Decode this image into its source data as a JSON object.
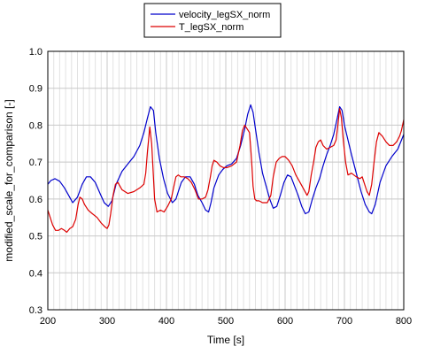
{
  "chart_data": {
    "type": "line",
    "xlabel": "Time [s]",
    "ylabel": "modified_scale_for_comparison [-]",
    "xlim": [
      200,
      800
    ],
    "ylim": [
      0.3,
      1.0
    ],
    "xticks": [
      "200",
      "300",
      "400",
      "500",
      "600",
      "700",
      "800"
    ],
    "yticks": [
      "0.3",
      "0.4",
      "0.5",
      "0.6",
      "0.7",
      "0.8",
      "0.9",
      "1.0"
    ],
    "grid": true,
    "legend_position": "top-center",
    "series": [
      {
        "name": "velocity_legSX_norm",
        "color": "#0000cc",
        "x": [
          200,
          205,
          212,
          220,
          228,
          235,
          242,
          250,
          258,
          265,
          272,
          280,
          288,
          295,
          302,
          308,
          315,
          325,
          335,
          345,
          355,
          362,
          368,
          373,
          378,
          382,
          388,
          395,
          402,
          410,
          416,
          420,
          425,
          432,
          440,
          447,
          453,
          460,
          466,
          471,
          475,
          480,
          488,
          495,
          502,
          510,
          518,
          525,
          532,
          537,
          542,
          546,
          550,
          556,
          562,
          568,
          574,
          580,
          586,
          592,
          598,
          604,
          610,
          616,
          622,
          628,
          634,
          640,
          646,
          652,
          658,
          664,
          670,
          676,
          682,
          688,
          692,
          696,
          700,
          706,
          712,
          720,
          728,
          735,
          742,
          746,
          752,
          760,
          770,
          780,
          790,
          800
        ],
        "y": [
          0.64,
          0.65,
          0.655,
          0.648,
          0.63,
          0.61,
          0.59,
          0.605,
          0.64,
          0.66,
          0.66,
          0.645,
          0.615,
          0.59,
          0.58,
          0.595,
          0.64,
          0.675,
          0.695,
          0.715,
          0.745,
          0.78,
          0.82,
          0.85,
          0.84,
          0.78,
          0.71,
          0.655,
          0.615,
          0.59,
          0.6,
          0.62,
          0.645,
          0.66,
          0.66,
          0.64,
          0.61,
          0.59,
          0.57,
          0.565,
          0.59,
          0.63,
          0.665,
          0.68,
          0.69,
          0.695,
          0.71,
          0.745,
          0.79,
          0.83,
          0.855,
          0.835,
          0.79,
          0.725,
          0.67,
          0.635,
          0.6,
          0.575,
          0.58,
          0.61,
          0.645,
          0.665,
          0.66,
          0.635,
          0.61,
          0.58,
          0.56,
          0.565,
          0.6,
          0.63,
          0.655,
          0.69,
          0.72,
          0.745,
          0.775,
          0.82,
          0.85,
          0.84,
          0.8,
          0.76,
          0.72,
          0.67,
          0.62,
          0.585,
          0.565,
          0.56,
          0.585,
          0.645,
          0.69,
          0.715,
          0.735,
          0.775
        ]
      },
      {
        "name": "T_legSX_norm",
        "color": "#dd0000",
        "x": [
          200,
          203,
          208,
          213,
          218,
          223,
          228,
          232,
          237,
          242,
          247,
          251,
          254,
          258,
          262,
          268,
          275,
          283,
          290,
          296,
          300,
          303,
          306,
          310,
          314,
          318,
          325,
          335,
          345,
          355,
          362,
          365,
          368,
          372,
          375,
          378,
          380,
          384,
          390,
          396,
          402,
          408,
          412,
          416,
          420,
          424,
          430,
          436,
          442,
          448,
          454,
          460,
          466,
          470,
          474,
          477,
          480,
          485,
          490,
          496,
          502,
          510,
          518,
          524,
          528,
          532,
          536,
          540,
          542,
          544,
          546,
          549,
          552,
          556,
          562,
          570,
          576,
          580,
          585,
          590,
          595,
          600,
          606,
          612,
          618,
          625,
          632,
          637,
          640,
          644,
          648,
          652,
          656,
          660,
          664,
          670,
          676,
          682,
          686,
          689,
          692,
          695,
          698,
          702,
          706,
          712,
          720,
          726,
          730,
          734,
          738,
          742,
          746,
          750,
          754,
          758,
          764,
          770,
          776,
          782,
          788,
          793,
          796,
          800
        ],
        "y": [
          0.57,
          0.555,
          0.53,
          0.515,
          0.515,
          0.52,
          0.515,
          0.51,
          0.52,
          0.525,
          0.545,
          0.585,
          0.605,
          0.6,
          0.585,
          0.57,
          0.56,
          0.55,
          0.535,
          0.525,
          0.52,
          0.53,
          0.56,
          0.61,
          0.64,
          0.645,
          0.625,
          0.615,
          0.62,
          0.63,
          0.64,
          0.67,
          0.73,
          0.795,
          0.75,
          0.66,
          0.6,
          0.565,
          0.57,
          0.565,
          0.58,
          0.6,
          0.63,
          0.66,
          0.665,
          0.66,
          0.66,
          0.655,
          0.645,
          0.625,
          0.6,
          0.6,
          0.605,
          0.625,
          0.66,
          0.69,
          0.705,
          0.7,
          0.69,
          0.685,
          0.685,
          0.69,
          0.7,
          0.745,
          0.785,
          0.8,
          0.79,
          0.78,
          0.74,
          0.69,
          0.635,
          0.6,
          0.595,
          0.595,
          0.59,
          0.59,
          0.61,
          0.66,
          0.7,
          0.71,
          0.715,
          0.715,
          0.705,
          0.69,
          0.665,
          0.645,
          0.625,
          0.61,
          0.62,
          0.665,
          0.7,
          0.74,
          0.755,
          0.76,
          0.745,
          0.735,
          0.74,
          0.745,
          0.76,
          0.8,
          0.845,
          0.82,
          0.76,
          0.7,
          0.665,
          0.67,
          0.66,
          0.655,
          0.66,
          0.64,
          0.62,
          0.61,
          0.64,
          0.7,
          0.755,
          0.78,
          0.77,
          0.755,
          0.745,
          0.745,
          0.755,
          0.77,
          0.785,
          0.815
        ]
      }
    ]
  }
}
